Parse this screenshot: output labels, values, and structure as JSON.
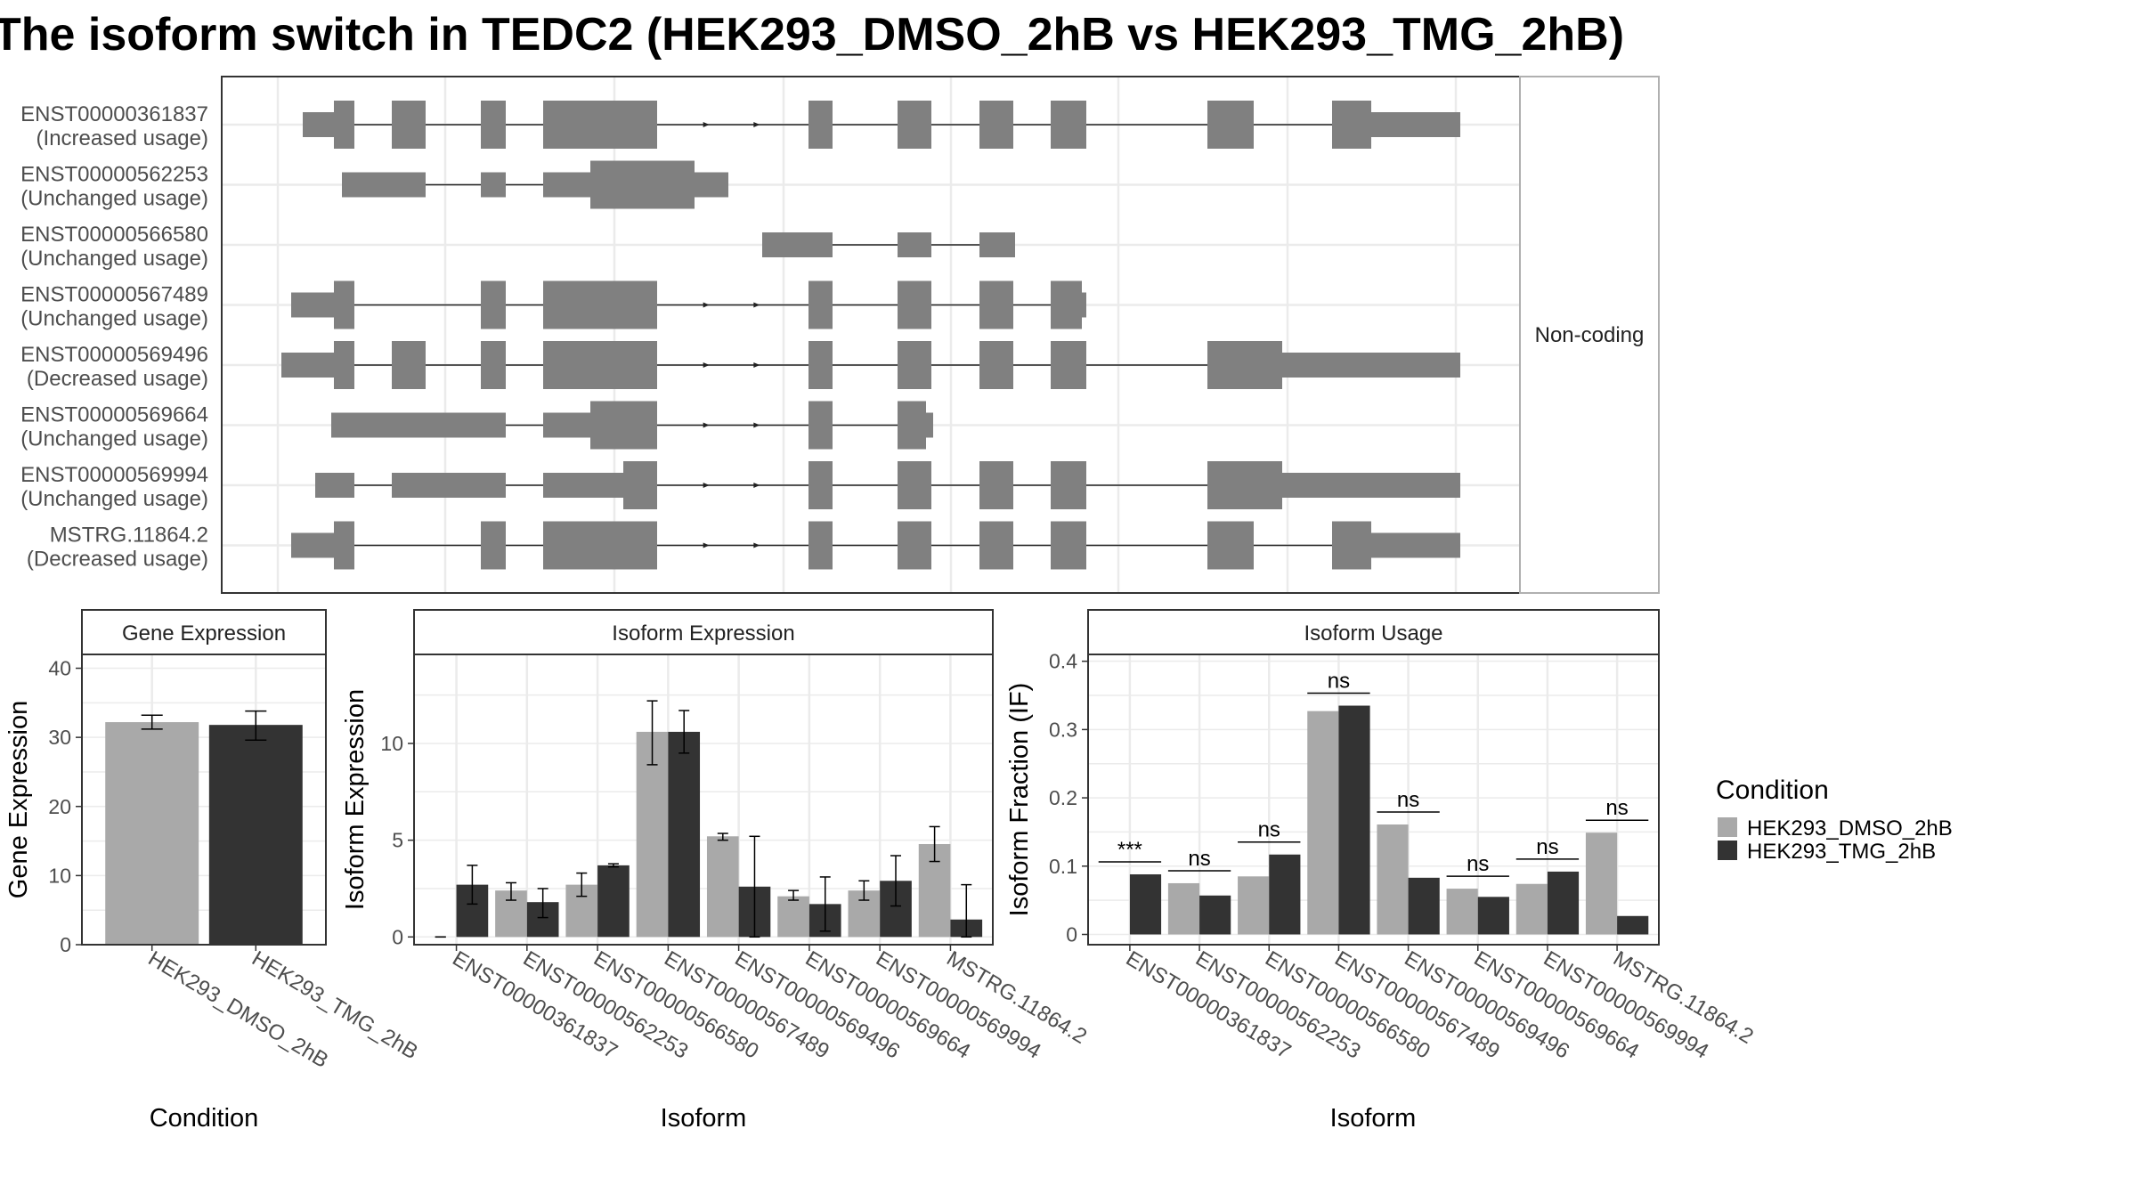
{
  "title": "The isoform switch in TEDC2 (HEK293_DMSO_2hB vs HEK293_TMG_2hB)",
  "colors": {
    "condition_1": "#a9a9a9",
    "condition_2": "#333333",
    "exon": "#808080",
    "grid": "#ebebeb",
    "panel_border": "#333333",
    "strip_fill": "#ffffff",
    "text": "#222222",
    "axis_text": "#4d4d4d"
  },
  "structure_panel": {
    "strip_label": "Non-coding",
    "isoforms": [
      {
        "id": "ENST00000361837",
        "usage": "(Increased usage)"
      },
      {
        "id": "ENST00000562253",
        "usage": "(Unchanged usage)"
      },
      {
        "id": "ENST00000566580",
        "usage": "(Unchanged usage)"
      },
      {
        "id": "ENST00000567489",
        "usage": "(Unchanged usage)"
      },
      {
        "id": "ENST00000569496",
        "usage": "(Decreased usage)"
      },
      {
        "id": "ENST00000569664",
        "usage": "(Unchanged usage)"
      },
      {
        "id": "ENST00000569994",
        "usage": "(Unchanged usage)"
      },
      {
        "id": "MSTRG.11864.2",
        "usage": "(Decreased usage)"
      }
    ]
  },
  "legend": {
    "title": "Condition",
    "items": [
      "HEK293_DMSO_2hB",
      "HEK293_TMG_2hB"
    ]
  },
  "chart_data": [
    {
      "type": "bar",
      "title": "Gene Expression",
      "xlabel": "Condition",
      "ylabel": "Gene Expression",
      "ylim": [
        0,
        42
      ],
      "yticks": [
        0,
        10,
        20,
        30,
        40
      ],
      "grid": true,
      "categories": [
        "HEK293_DMSO_2hB",
        "HEK293_TMG_2hB"
      ],
      "values": [
        32.2,
        31.8
      ],
      "errors": [
        [
          31.2,
          33.2
        ],
        [
          29.6,
          33.8
        ]
      ]
    },
    {
      "type": "bar",
      "title": "Isoform Expression",
      "xlabel": "Isoform",
      "ylabel": "Isoform Expression",
      "ylim": [
        -0.4,
        14.6
      ],
      "yticks": [
        0,
        5,
        10
      ],
      "grid": true,
      "categories": [
        "ENST00000361837",
        "ENST00000562253",
        "ENST00000566580",
        "ENST00000567489",
        "ENST00000569496",
        "ENST00000569664",
        "ENST00000569994",
        "MSTRG.11864.2"
      ],
      "series": [
        {
          "name": "HEK293_DMSO_2hB",
          "values": [
            0.0,
            2.4,
            2.7,
            10.6,
            5.2,
            2.1,
            2.4,
            4.8
          ],
          "errors": [
            [
              0.0,
              0.0
            ],
            [
              1.9,
              2.8
            ],
            [
              2.1,
              3.3
            ],
            [
              8.9,
              12.2
            ],
            [
              5.0,
              5.35
            ],
            [
              1.9,
              2.4
            ],
            [
              1.9,
              2.9
            ],
            [
              3.9,
              5.7
            ]
          ]
        },
        {
          "name": "HEK293_TMG_2hB",
          "values": [
            2.7,
            1.8,
            3.7,
            10.6,
            2.6,
            1.7,
            2.9,
            0.9
          ],
          "errors": [
            [
              1.7,
              3.7
            ],
            [
              1.0,
              2.5
            ],
            [
              3.62,
              3.78
            ],
            [
              9.5,
              11.7
            ],
            [
              0.0,
              5.2
            ],
            [
              0.3,
              3.1
            ],
            [
              1.6,
              4.2
            ],
            [
              0.0,
              2.7
            ]
          ]
        }
      ]
    },
    {
      "type": "bar",
      "title": "Isoform Usage",
      "xlabel": "Isoform",
      "ylabel": "Isoform Fraction (IF)",
      "ylim": [
        -0.015,
        0.41
      ],
      "yticks": [
        0.0,
        0.1,
        0.2,
        0.3,
        0.4
      ],
      "grid": true,
      "categories": [
        "ENST00000361837",
        "ENST00000562253",
        "ENST00000566580",
        "ENST00000567489",
        "ENST00000569496",
        "ENST00000569664",
        "ENST00000569994",
        "MSTRG.11864.2"
      ],
      "series": [
        {
          "name": "HEK293_DMSO_2hB",
          "values": [
            0.0,
            0.075,
            0.085,
            0.327,
            0.161,
            0.067,
            0.074,
            0.149
          ]
        },
        {
          "name": "HEK293_TMG_2hB",
          "values": [
            0.088,
            0.057,
            0.117,
            0.335,
            0.083,
            0.055,
            0.092,
            0.027
          ]
        }
      ],
      "significance": [
        "***",
        "ns",
        "ns",
        "ns",
        "ns",
        "ns",
        "ns",
        "ns"
      ]
    }
  ]
}
